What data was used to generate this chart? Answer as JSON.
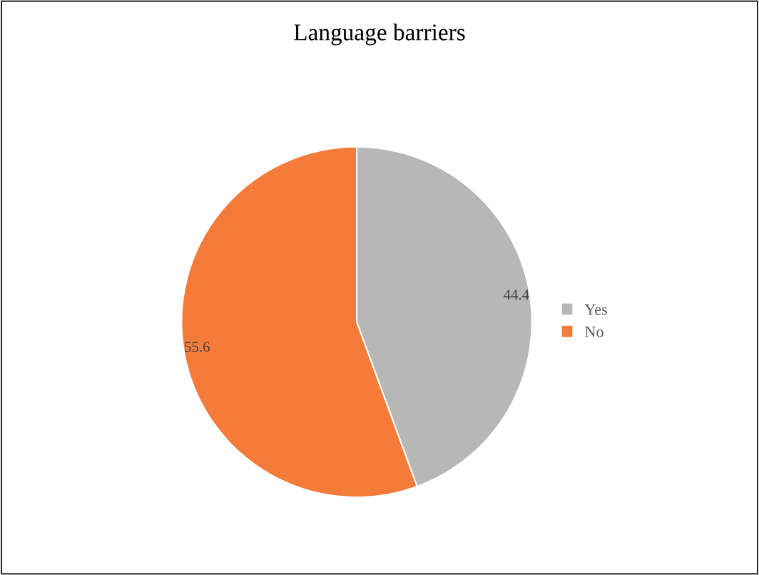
{
  "chart_data": {
    "type": "pie",
    "title": "Language barriers",
    "categories": [
      "Yes",
      "No"
    ],
    "values": [
      44.4,
      55.6
    ],
    "colors": [
      "#b7b7b7",
      "#f47b3a"
    ],
    "data_labels": true,
    "legend": "right"
  }
}
